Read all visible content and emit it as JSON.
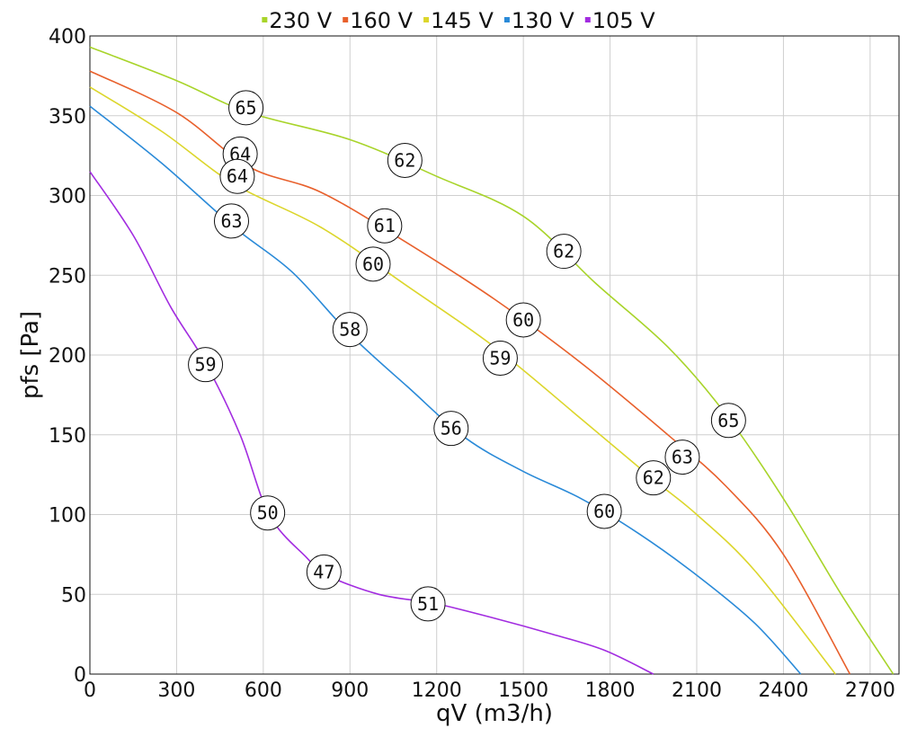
{
  "chart_data": {
    "type": "line",
    "xlabel": "qV (m3/h)",
    "ylabel": "pfs [Pa]",
    "xlim": [
      0,
      2800
    ],
    "ylim": [
      0,
      400
    ],
    "x_ticks": [
      0,
      300,
      600,
      900,
      1200,
      1500,
      1800,
      2100,
      2400,
      2700
    ],
    "y_ticks": [
      0,
      50,
      100,
      150,
      200,
      250,
      300,
      350,
      400
    ],
    "grid": true,
    "legend_position": "top",
    "series": [
      {
        "name": "230 V",
        "color": "#a8d42a",
        "points": [
          [
            0,
            393
          ],
          [
            300,
            372
          ],
          [
            550,
            352
          ],
          [
            900,
            335
          ],
          [
            1200,
            312
          ],
          [
            1500,
            287
          ],
          [
            1750,
            245
          ],
          [
            2000,
            205
          ],
          [
            2200,
            163
          ],
          [
            2400,
            110
          ],
          [
            2600,
            50
          ],
          [
            2780,
            0
          ]
        ],
        "labels": [
          {
            "x": 540,
            "y": 355,
            "text": "65"
          },
          {
            "x": 1090,
            "y": 322,
            "text": "62"
          },
          {
            "x": 1640,
            "y": 265,
            "text": "62"
          },
          {
            "x": 2210,
            "y": 159,
            "text": "65"
          }
        ]
      },
      {
        "name": "160 V",
        "color": "#e8602c",
        "points": [
          [
            0,
            378
          ],
          [
            300,
            352
          ],
          [
            550,
            318
          ],
          [
            800,
            302
          ],
          [
            1100,
            270
          ],
          [
            1400,
            235
          ],
          [
            1700,
            195
          ],
          [
            2000,
            150
          ],
          [
            2200,
            118
          ],
          [
            2400,
            75
          ],
          [
            2630,
            0
          ]
        ],
        "labels": [
          {
            "x": 520,
            "y": 326,
            "text": "64"
          },
          {
            "x": 1020,
            "y": 281,
            "text": "61"
          },
          {
            "x": 1500,
            "y": 222,
            "text": "60"
          },
          {
            "x": 2050,
            "y": 136,
            "text": "63"
          }
        ]
      },
      {
        "name": "145 V",
        "color": "#dcd62c",
        "points": [
          [
            0,
            368
          ],
          [
            250,
            340
          ],
          [
            500,
            307
          ],
          [
            800,
            280
          ],
          [
            1100,
            243
          ],
          [
            1400,
            205
          ],
          [
            1700,
            160
          ],
          [
            1950,
            122
          ],
          [
            2100,
            100
          ],
          [
            2300,
            65
          ],
          [
            2580,
            0
          ]
        ],
        "labels": [
          {
            "x": 510,
            "y": 312,
            "text": "64"
          },
          {
            "x": 980,
            "y": 257,
            "text": "60"
          },
          {
            "x": 1420,
            "y": 198,
            "text": "59"
          },
          {
            "x": 1950,
            "y": 123,
            "text": "62"
          }
        ]
      },
      {
        "name": "130 V",
        "color": "#2a8ad8",
        "points": [
          [
            0,
            356
          ],
          [
            250,
            320
          ],
          [
            500,
            280
          ],
          [
            700,
            252
          ],
          [
            900,
            213
          ],
          [
            1100,
            180
          ],
          [
            1300,
            148
          ],
          [
            1500,
            127
          ],
          [
            1700,
            110
          ],
          [
            1900,
            88
          ],
          [
            2100,
            62
          ],
          [
            2300,
            32
          ],
          [
            2460,
            0
          ]
        ],
        "labels": [
          {
            "x": 490,
            "y": 284,
            "text": "63"
          },
          {
            "x": 900,
            "y": 216,
            "text": "58"
          },
          {
            "x": 1250,
            "y": 154,
            "text": "56"
          },
          {
            "x": 1780,
            "y": 102,
            "text": "60"
          }
        ]
      },
      {
        "name": "105 V",
        "color": "#a22ce0",
        "points": [
          [
            0,
            315
          ],
          [
            150,
            275
          ],
          [
            280,
            230
          ],
          [
            400,
            195
          ],
          [
            520,
            150
          ],
          [
            620,
            100
          ],
          [
            750,
            73
          ],
          [
            820,
            62
          ],
          [
            1000,
            50
          ],
          [
            1200,
            44
          ],
          [
            1400,
            35
          ],
          [
            1600,
            25
          ],
          [
            1780,
            15
          ],
          [
            1950,
            0
          ]
        ],
        "labels": [
          {
            "x": 400,
            "y": 194,
            "text": "59"
          },
          {
            "x": 615,
            "y": 101,
            "text": "50"
          },
          {
            "x": 810,
            "y": 64,
            "text": "47"
          },
          {
            "x": 1170,
            "y": 44,
            "text": "51"
          }
        ]
      }
    ]
  }
}
